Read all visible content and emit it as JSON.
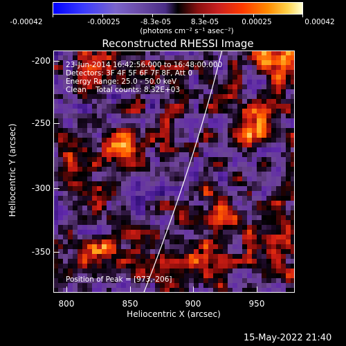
{
  "colorbar": {
    "tick_labels": [
      "-0.00042",
      "-0.00025",
      "-8.3e-05",
      "8.3e-05",
      "0.00025",
      "0.00042"
    ],
    "units": "(photons cm⁻² s⁻¹ asec⁻²)"
  },
  "title": "Reconstructed RHESSI Image",
  "info": {
    "time": "23-Jun-2014 16:42:56.000 to 16:48:00.000",
    "detectors": "Detectors: 3F 4F 5F 6F 7F 8F, Att 0",
    "energy": "Energy Range: 25.0 - 50.0 keV",
    "clean": "Clean    Total counts: 8.32E+03"
  },
  "peak": "Position of Peak = [973,-206]",
  "axes": {
    "xlabel": "Heliocentric X (arcsec)",
    "ylabel": "Heliocentric Y (arcsec)",
    "xticks": [
      "800",
      "850",
      "900",
      "950"
    ],
    "yticks": [
      "-200",
      "-250",
      "-300",
      "-350"
    ]
  },
  "chart_data": {
    "type": "heatmap",
    "title": "Reconstructed RHESSI Image",
    "xlabel": "Heliocentric X (arcsec)",
    "ylabel": "Heliocentric Y (arcsec)",
    "xlim": [
      790,
      980
    ],
    "ylim": [
      -385,
      -190
    ],
    "colorbar_range": [
      -0.00042,
      0.00042
    ],
    "peak": [
      973,
      -206
    ]
  },
  "timestamp": "15-May-2022 21:40"
}
